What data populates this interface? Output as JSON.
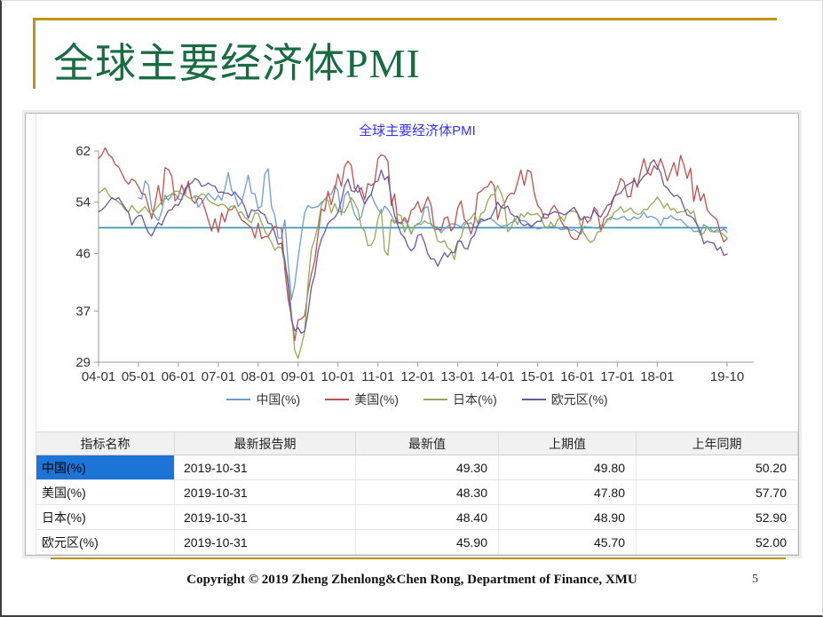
{
  "slide": {
    "title": "全球主要经济体PMI",
    "footer": "Copyright © 2019 Zheng Zhenlong&Chen Rong, Department of Finance,  XMU",
    "page_number": "5"
  },
  "colors": {
    "gold": "#bd9510",
    "green": "#186c42",
    "chart_title_blue": "#3333ff",
    "selection_blue": "#1b74d6",
    "reference_teal": "#3e97b8",
    "axis_gray": "#9a9a9a",
    "tick_text": "#333333"
  },
  "chart_data": {
    "type": "line",
    "title": "全球主要经济体PMI",
    "ylim": [
      29,
      62
    ],
    "y_ticks": [
      62,
      54,
      46,
      37,
      29
    ],
    "x_tick_labels": [
      "04-01",
      "05-01",
      "06-01",
      "07-01",
      "08-01",
      "09-01",
      "10-01",
      "11-01",
      "12-01",
      "13-01",
      "14-01",
      "15-01",
      "16-01",
      "17-01",
      "18-01",
      "19-10"
    ],
    "x_tick_month_indices": [
      0,
      12,
      24,
      36,
      48,
      60,
      72,
      84,
      96,
      108,
      120,
      132,
      144,
      156,
      168,
      189
    ],
    "x_range_months": [
      "2004-01",
      "2019-10"
    ],
    "reference_line": 50,
    "legend_position": "bottom",
    "grid": false,
    "series": [
      {
        "name": "中国(%)",
        "key": "china",
        "color": "#6c9cd2",
        "values": [
          null,
          null,
          null,
          null,
          null,
          null,
          null,
          null,
          null,
          null,
          null,
          null,
          54.7,
          54.5,
          57.3,
          56.7,
          52.9,
          51.7,
          51.1,
          52.6,
          55.1,
          54.3,
          55.1,
          55.3,
          54.5,
          54.4,
          55.8,
          56.6,
          54.6,
          54.9,
          53.2,
          53.9,
          54.7,
          55.4,
          54.8,
          54.3,
          55.1,
          54.3,
          56.1,
          58.6,
          55.9,
          55.1,
          53.3,
          54.0,
          55.9,
          58.2,
          55.4,
          55.3,
          53.0,
          53.4,
          58.4,
          59.2,
          53.3,
          52.0,
          48.4,
          48.4,
          51.2,
          44.6,
          38.8,
          41.2,
          45.3,
          49.0,
          52.4,
          53.5,
          53.1,
          53.2,
          53.3,
          54.0,
          54.3,
          55.2,
          55.2,
          56.6,
          55.8,
          52.0,
          55.1,
          55.7,
          53.9,
          52.1,
          51.2,
          51.7,
          53.8,
          54.7,
          55.2,
          53.9,
          52.9,
          52.2,
          53.4,
          52.9,
          52.0,
          50.9,
          50.7,
          50.9,
          51.2,
          50.4,
          49.0,
          50.3,
          50.5,
          51.0,
          53.1,
          53.3,
          50.4,
          50.2,
          50.1,
          49.2,
          49.8,
          50.2,
          50.6,
          50.6,
          50.4,
          50.1,
          50.9,
          50.6,
          50.8,
          50.1,
          50.3,
          51.0,
          51.1,
          51.4,
          51.4,
          51.0,
          50.5,
          50.2,
          50.3,
          50.4,
          50.8,
          51.0,
          51.7,
          51.1,
          51.1,
          50.8,
          50.3,
          50.1,
          49.8,
          49.9,
          50.1,
          50.1,
          50.2,
          50.2,
          50.0,
          49.7,
          49.8,
          49.8,
          49.6,
          49.7,
          49.4,
          49.0,
          50.2,
          50.1,
          50.1,
          50.0,
          49.9,
          50.4,
          50.4,
          51.2,
          51.7,
          51.4,
          51.3,
          51.6,
          51.8,
          51.2,
          51.2,
          51.7,
          51.4,
          51.7,
          52.4,
          51.6,
          51.8,
          51.6,
          51.3,
          50.3,
          51.5,
          51.4,
          51.9,
          51.5,
          51.2,
          51.3,
          50.8,
          50.2,
          50.0,
          49.4,
          49.5,
          49.2,
          50.5,
          50.1,
          49.4,
          49.4,
          49.7,
          49.5,
          49.8,
          49.3
        ]
      },
      {
        "name": "美国(%)",
        "key": "usa",
        "color": "#c0504d",
        "values": [
          60.8,
          61.4,
          62.5,
          61.4,
          61.0,
          59.9,
          59.5,
          58.5,
          57.4,
          56.8,
          57.6,
          57.3,
          56.4,
          55.3,
          55.2,
          53.3,
          51.4,
          53.8,
          56.6,
          53.6,
          59.4,
          59.1,
          58.1,
          54.2,
          54.8,
          56.7,
          55.2,
          57.3,
          54.4,
          53.8,
          54.7,
          54.5,
          52.9,
          51.2,
          49.5,
          51.4,
          49.3,
          52.3,
          50.9,
          52.8,
          52.8,
          53.4,
          52.3,
          51.2,
          50.9,
          50.4,
          50.0,
          48.4,
          50.7,
          48.3,
          48.6,
          48.6,
          49.6,
          50.2,
          50.0,
          49.9,
          43.5,
          38.9,
          36.2,
          32.4,
          35.6,
          35.8,
          36.3,
          40.1,
          42.8,
          44.8,
          48.9,
          52.9,
          52.6,
          55.7,
          53.6,
          55.9,
          58.4,
          56.5,
          59.6,
          60.4,
          59.7,
          56.2,
          55.5,
          56.3,
          54.4,
          56.9,
          56.6,
          57.0,
          60.8,
          61.4,
          61.2,
          60.4,
          53.5,
          55.3,
          50.9,
          50.6,
          51.6,
          50.8,
          52.7,
          53.1,
          54.1,
          52.4,
          53.4,
          54.8,
          53.5,
          49.7,
          49.8,
          49.6,
          51.5,
          51.7,
          49.5,
          50.2,
          53.1,
          54.2,
          51.3,
          50.7,
          49.0,
          50.9,
          55.4,
          55.7,
          56.2,
          56.4,
          57.3,
          56.5,
          51.3,
          53.2,
          53.7,
          54.9,
          55.4,
          55.3,
          57.1,
          59.0,
          56.6,
          59.0,
          58.7,
          55.5,
          53.5,
          52.9,
          51.5,
          51.5,
          52.8,
          53.5,
          52.7,
          51.1,
          50.2,
          50.1,
          48.6,
          48.2,
          48.2,
          49.5,
          51.8,
          50.8,
          51.3,
          53.2,
          52.6,
          49.4,
          51.5,
          51.9,
          53.2,
          54.7,
          56.0,
          57.7,
          57.2,
          54.8,
          54.9,
          57.8,
          56.3,
          58.8,
          60.8,
          58.7,
          58.2,
          59.7,
          59.1,
          60.8,
          59.3,
          57.3,
          58.7,
          60.2,
          58.1,
          61.3,
          59.8,
          57.7,
          59.3,
          54.1,
          56.6,
          54.2,
          55.3,
          52.8,
          52.1,
          51.7,
          51.2,
          49.1,
          47.8,
          48.3
        ]
      },
      {
        "name": "日本(%)",
        "key": "japan",
        "color": "#93a954",
        "values": [
          55.4,
          55.8,
          56.2,
          55.2,
          54.6,
          54.4,
          54.0,
          53.6,
          52.8,
          52.5,
          53.5,
          52.8,
          52.3,
          52.8,
          53.3,
          52.5,
          52.1,
          52.8,
          53.4,
          54.1,
          54.5,
          55.0,
          55.3,
          55.7,
          55.7,
          55.3,
          55.1,
          54.7,
          54.5,
          55.0,
          54.8,
          55.3,
          55.1,
          54.3,
          53.9,
          53.7,
          53.4,
          53.7,
          53.5,
          52.9,
          53.4,
          53.4,
          52.3,
          52.5,
          51.6,
          51.2,
          50.8,
          52.3,
          52.3,
          50.8,
          49.5,
          48.6,
          47.7,
          46.5,
          47.0,
          46.9,
          44.3,
          42.2,
          36.7,
          30.8,
          29.6,
          31.6,
          33.8,
          41.4,
          46.6,
          48.2,
          50.4,
          53.6,
          54.5,
          54.3,
          52.3,
          53.8,
          52.5,
          52.5,
          52.4,
          53.5,
          54.7,
          53.9,
          52.8,
          50.1,
          49.5,
          47.2,
          47.3,
          48.3,
          51.4,
          52.9,
          46.4,
          45.7,
          51.3,
          50.7,
          52.1,
          51.9,
          49.3,
          50.6,
          49.1,
          50.2,
          50.7,
          50.5,
          51.1,
          50.7,
          50.7,
          49.9,
          47.9,
          47.7,
          48.0,
          46.9,
          46.5,
          45.0,
          47.7,
          48.5,
          50.4,
          51.1,
          51.5,
          52.3,
          50.7,
          52.2,
          52.5,
          54.2,
          55.1,
          55.2,
          56.6,
          55.5,
          53.9,
          49.4,
          49.9,
          51.5,
          50.5,
          52.2,
          51.7,
          52.4,
          52.0,
          52.1,
          52.2,
          51.6,
          50.3,
          49.9,
          50.9,
          50.1,
          51.2,
          51.7,
          51.0,
          52.4,
          52.6,
          52.6,
          52.3,
          50.1,
          49.1,
          48.2,
          47.7,
          48.1,
          49.3,
          49.5,
          50.4,
          51.4,
          51.3,
          52.4,
          52.7,
          53.3,
          52.4,
          52.7,
          53.1,
          52.4,
          52.1,
          52.2,
          52.9,
          52.8,
          53.6,
          54.0,
          54.8,
          54.1,
          53.1,
          53.8,
          52.8,
          53.0,
          52.3,
          52.5,
          52.5,
          52.9,
          52.2,
          52.6,
          50.3,
          48.9,
          49.2,
          50.2,
          49.8,
          49.3,
          49.4,
          49.3,
          48.9,
          48.4
        ]
      },
      {
        "name": "欧元区(%)",
        "key": "eurozone",
        "color": "#6b579e",
        "values": [
          52.5,
          52.8,
          53.3,
          54.0,
          54.7,
          54.4,
          54.7,
          53.9,
          53.1,
          52.4,
          50.4,
          51.4,
          51.9,
          51.9,
          50.4,
          49.2,
          48.7,
          49.9,
          50.8,
          50.4,
          51.7,
          52.7,
          52.8,
          53.6,
          53.5,
          54.5,
          56.1,
          56.7,
          57.0,
          57.7,
          57.4,
          56.5,
          56.6,
          57.0,
          56.6,
          56.5,
          55.5,
          55.6,
          55.4,
          55.4,
          55.0,
          55.6,
          54.9,
          54.3,
          53.2,
          51.5,
          52.8,
          52.6,
          52.8,
          52.3,
          52.0,
          50.7,
          50.6,
          49.2,
          47.4,
          47.6,
          45.0,
          41.1,
          35.6,
          33.9,
          34.4,
          33.5,
          33.9,
          36.8,
          40.7,
          42.6,
          46.3,
          48.2,
          49.3,
          50.7,
          51.2,
          51.6,
          52.4,
          54.2,
          56.6,
          57.6,
          55.8,
          55.6,
          56.7,
          55.1,
          53.7,
          54.6,
          55.3,
          57.1,
          57.3,
          59.0,
          57.5,
          58.0,
          54.6,
          52.0,
          50.4,
          49.0,
          48.5,
          47.1,
          46.4,
          46.9,
          48.8,
          49.0,
          47.7,
          45.9,
          45.1,
          45.1,
          44.0,
          45.1,
          46.1,
          45.4,
          46.2,
          46.1,
          47.9,
          47.9,
          46.8,
          46.7,
          48.3,
          48.8,
          50.3,
          51.4,
          51.1,
          51.3,
          51.6,
          52.7,
          54.0,
          53.2,
          53.0,
          53.4,
          52.2,
          51.8,
          51.8,
          50.7,
          50.3,
          50.6,
          50.1,
          50.6,
          51.0,
          51.0,
          52.2,
          52.0,
          52.2,
          52.5,
          52.4,
          52.3,
          52.0,
          52.3,
          52.8,
          53.2,
          52.3,
          51.2,
          51.6,
          51.7,
          51.5,
          52.8,
          52.0,
          51.7,
          52.6,
          53.5,
          53.7,
          54.9,
          55.2,
          55.4,
          56.2,
          56.7,
          57.0,
          57.4,
          56.6,
          57.4,
          58.1,
          58.5,
          60.1,
          60.6,
          59.6,
          58.6,
          56.6,
          56.2,
          55.5,
          54.9,
          55.1,
          54.6,
          53.2,
          52.0,
          51.8,
          51.4,
          50.5,
          49.3,
          47.5,
          47.9,
          47.7,
          47.6,
          46.5,
          47.0,
          45.7,
          45.9
        ]
      }
    ]
  },
  "table": {
    "headers": [
      "指标名称",
      "最新报告期",
      "最新值",
      "上期值",
      "上年同期"
    ],
    "rows": [
      {
        "name": "中国(%)",
        "report_date": "2019-10-31",
        "latest": "49.30",
        "previous": "49.80",
        "year_ago": "50.20",
        "selected": true
      },
      {
        "name": "美国(%)",
        "report_date": "2019-10-31",
        "latest": "48.30",
        "previous": "47.80",
        "year_ago": "57.70",
        "selected": false
      },
      {
        "name": "日本(%)",
        "report_date": "2019-10-31",
        "latest": "48.40",
        "previous": "48.90",
        "year_ago": "52.90",
        "selected": false
      },
      {
        "name": "欧元区(%)",
        "report_date": "2019-10-31",
        "latest": "45.90",
        "previous": "45.70",
        "year_ago": "52.00",
        "selected": false
      }
    ]
  }
}
